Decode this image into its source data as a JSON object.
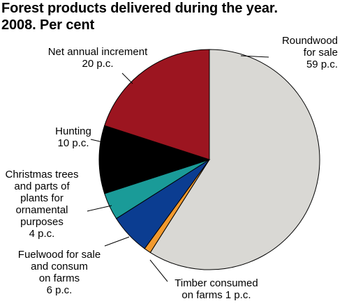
{
  "chart_data": {
    "type": "pie",
    "title": "Forest products delivered during the year.",
    "subtitle": "2008. Per cent",
    "start_angle_deg": 0,
    "direction": "clockwise",
    "slices": [
      {
        "label": "Roundwood\nfor sale\n59 p.c.",
        "value": 59,
        "color": "#d9d8d4"
      },
      {
        "label": "Timber consumed\non farms 1 p.c.",
        "value": 1,
        "color": "#f29a2e"
      },
      {
        "label": "Fuelwood for sale\nand consum\non farms\n6 p.c.",
        "value": 6,
        "color": "#0b3d91"
      },
      {
        "label": "Christmas trees\nand parts of\nplants for\nornamental\npurposes\n4 p.c.",
        "value": 4,
        "color": "#1a9b98"
      },
      {
        "label": "Hunting\n10 p.c.",
        "value": 10,
        "color": "#000000"
      },
      {
        "label": "Net annual increment\n20 p.c.",
        "value": 20,
        "color": "#9c1520"
      }
    ]
  }
}
